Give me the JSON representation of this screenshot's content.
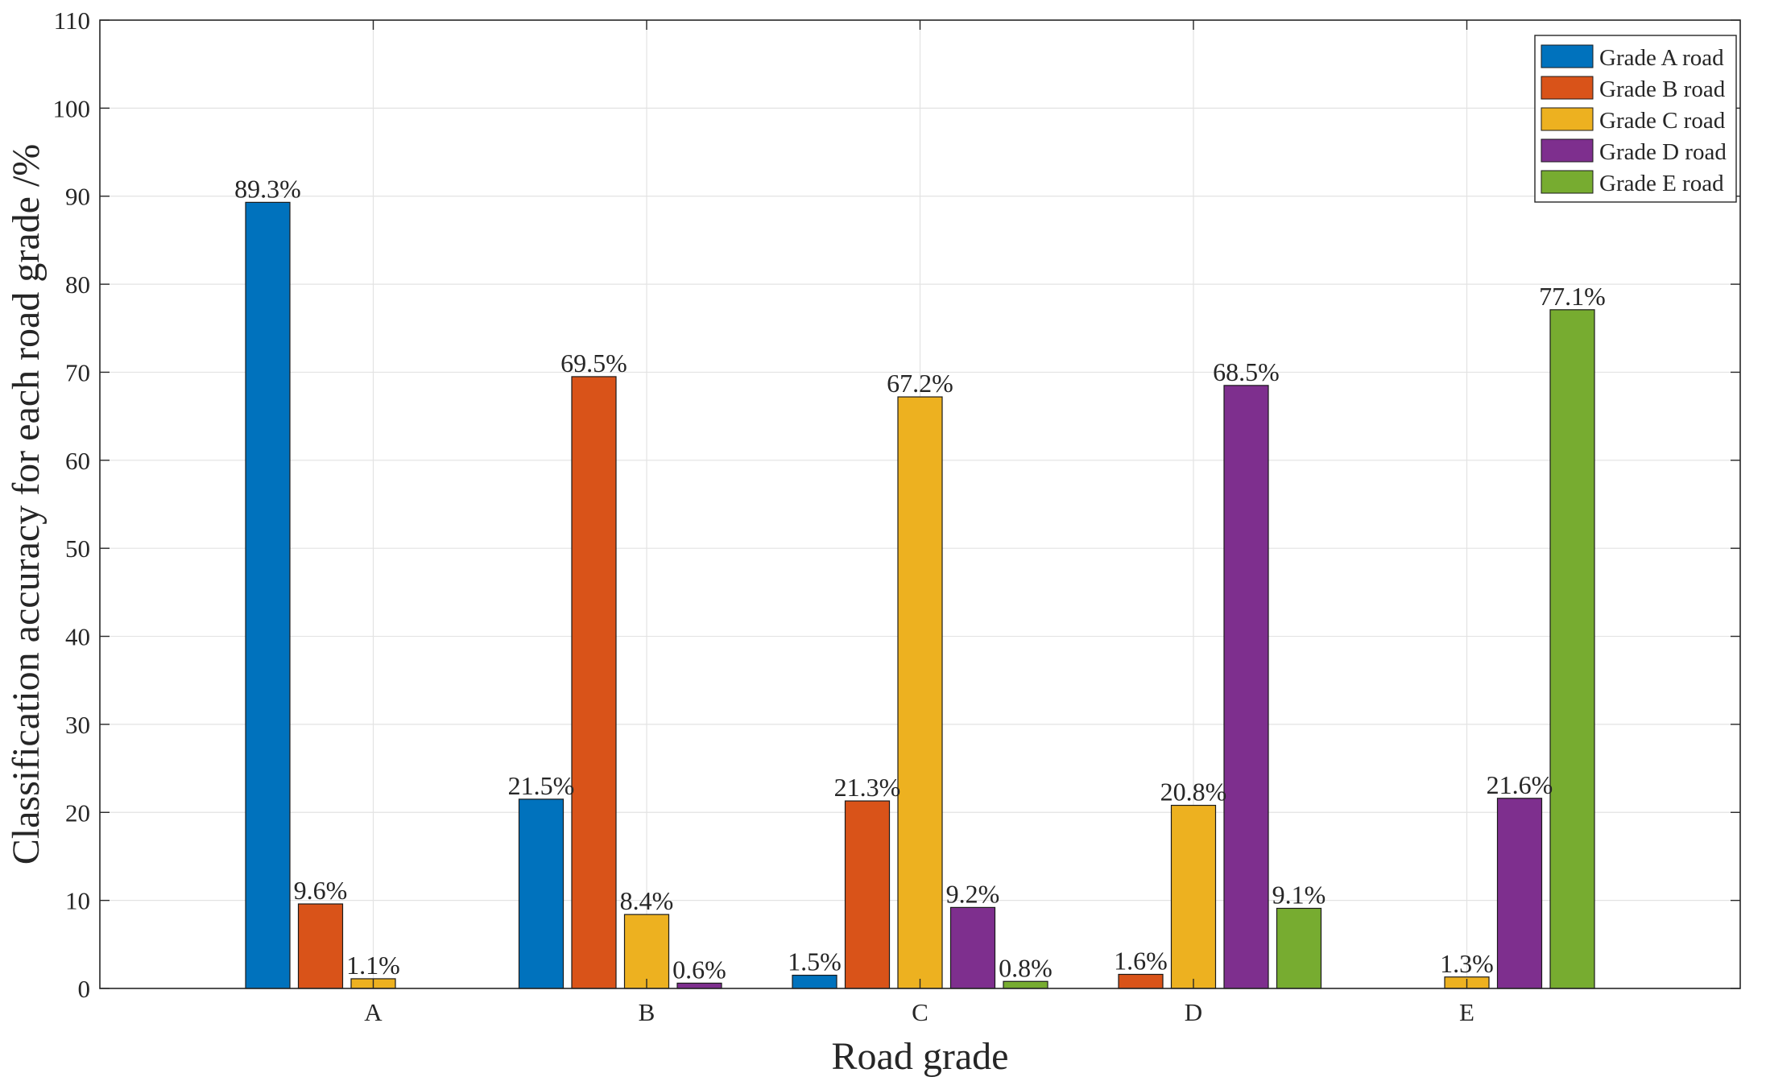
{
  "chart_data": {
    "type": "bar",
    "xlabel": "Road grade",
    "ylabel": "Classification accuracy for each road grade /%",
    "categories": [
      "A",
      "B",
      "C",
      "D",
      "E"
    ],
    "ylim": [
      0,
      110
    ],
    "yticks": [
      0,
      10,
      20,
      30,
      40,
      50,
      60,
      70,
      80,
      90,
      100,
      110
    ],
    "grid": true,
    "legend_position": "top-right",
    "series": [
      {
        "name": "Grade A road",
        "color": "#0072BD",
        "values": [
          89.3,
          21.5,
          1.5,
          0,
          0
        ],
        "labels": [
          "89.3%",
          "21.5%",
          "1.5%",
          "",
          ""
        ]
      },
      {
        "name": "Grade B road",
        "color": "#D95319",
        "values": [
          9.6,
          69.5,
          21.3,
          1.6,
          0
        ],
        "labels": [
          "9.6%",
          "69.5%",
          "21.3%",
          "1.6%",
          ""
        ]
      },
      {
        "name": "Grade C road",
        "color": "#EDB120",
        "values": [
          1.1,
          8.4,
          67.2,
          20.8,
          1.3
        ],
        "labels": [
          "1.1%",
          "8.4%",
          "67.2%",
          "20.8%",
          "1.3%"
        ]
      },
      {
        "name": "Grade D road",
        "color": "#7E2F8E",
        "values": [
          0,
          0.6,
          9.2,
          68.5,
          21.6
        ],
        "labels": [
          "",
          "0.6%",
          "9.2%",
          "68.5%",
          "21.6%"
        ]
      },
      {
        "name": "Grade E road",
        "color": "#77AC30",
        "values": [
          0,
          0,
          0.8,
          9.1,
          77.1
        ],
        "labels": [
          "",
          "",
          "0.8%",
          "9.1%",
          "77.1%"
        ]
      }
    ]
  }
}
